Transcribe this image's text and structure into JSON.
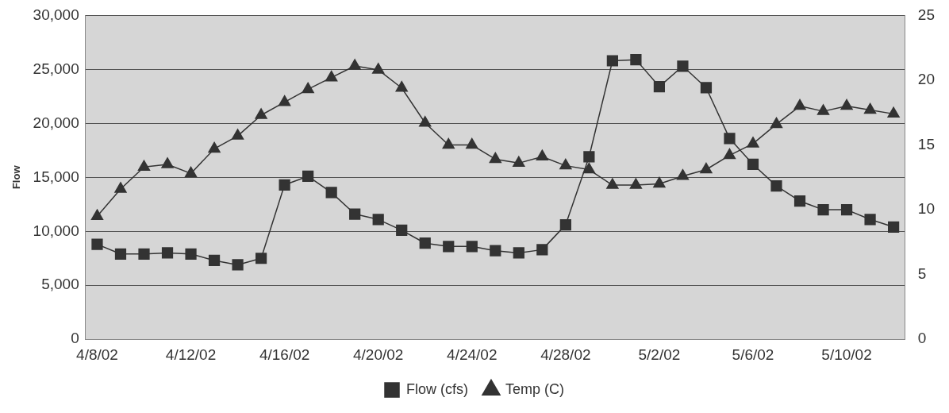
{
  "chart_data": {
    "type": "line",
    "categories": [
      "4/8/02",
      null,
      null,
      null,
      "4/12/02",
      null,
      null,
      null,
      "4/16/02",
      null,
      null,
      null,
      "4/20/02",
      null,
      null,
      null,
      "4/24/02",
      null,
      null,
      null,
      "4/28/02",
      null,
      null,
      null,
      "5/2/02",
      null,
      null,
      null,
      "5/6/02",
      null,
      null,
      null,
      "5/10/02",
      null,
      null
    ],
    "ylabel": "Flow",
    "ylim": [
      0,
      30000
    ],
    "yticks": [
      {
        "value": 0,
        "label": "0"
      },
      {
        "value": 5000,
        "label": "5,000"
      },
      {
        "value": 10000,
        "label": "10,000"
      },
      {
        "value": 15000,
        "label": "15,000"
      },
      {
        "value": 20000,
        "label": "20,000"
      },
      {
        "value": 25000,
        "label": "25,000"
      },
      {
        "value": 30000,
        "label": "30,000"
      }
    ],
    "y2lim": [
      0,
      25
    ],
    "y2ticks": [
      0,
      5,
      10,
      15,
      20,
      25
    ],
    "grid": "y",
    "legend": "bottom",
    "line_style": "solid",
    "series": [
      {
        "name": "Flow (cfs)",
        "color": "#333333",
        "marker": "square",
        "values": [
          8800,
          7900,
          7900,
          8000,
          7900,
          7300,
          6900,
          7500,
          14300,
          15100,
          13600,
          11600,
          11100,
          10100,
          8900,
          8600,
          8600,
          8200,
          8000,
          8300,
          10600,
          16900,
          25800,
          25900,
          23400,
          25300,
          23300,
          18600,
          16200,
          14200,
          12800,
          12000,
          12000,
          11100,
          10400
        ]
      },
      {
        "name": "Temp (C)",
        "color": "#333333",
        "marker": "triangle",
        "axis": "y2",
        "values": [
          9.5,
          11.6,
          13.3,
          13.5,
          12.8,
          14.7,
          15.7,
          17.3,
          18.3,
          19.3,
          20.2,
          21.1,
          20.8,
          19.4,
          16.7,
          15.0,
          15.0,
          13.9,
          13.6,
          14.1,
          13.4,
          13.1,
          11.9,
          11.9,
          12.0,
          12.6,
          13.1,
          14.2,
          15.1,
          16.6,
          18.0,
          17.6,
          18.0,
          17.7,
          17.4
        ]
      }
    ]
  }
}
